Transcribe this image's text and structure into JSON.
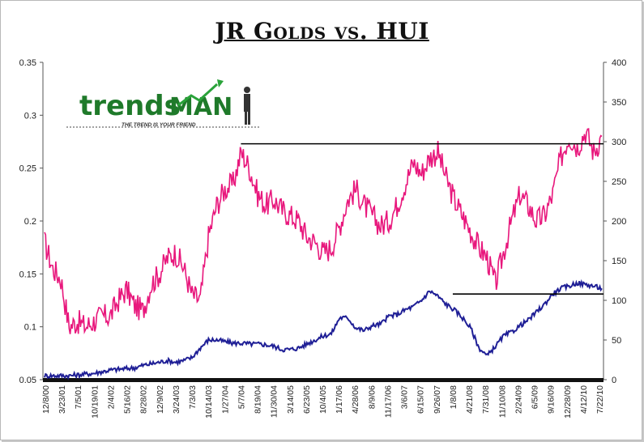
{
  "chart_data": {
    "type": "line",
    "title": "JR Golds vs. HUI",
    "xlabel": "",
    "ylabel_left": "",
    "ylabel_right": "",
    "y_left_range": [
      0.05,
      0.35
    ],
    "y_left_ticks": [
      "0.05",
      "0.1",
      "0.15",
      "0.2",
      "0.25",
      "0.3",
      "0.35"
    ],
    "y_right_range": [
      0,
      400
    ],
    "y_right_ticks": [
      "0",
      "50",
      "100",
      "150",
      "200",
      "250",
      "300",
      "350",
      "400"
    ],
    "x_tick_labels": [
      "12/8/00",
      "3/23/01",
      "7/5/01",
      "10/19/01",
      "2/4/02",
      "5/16/02",
      "8/28/02",
      "12/9/02",
      "3/24/03",
      "7/3/03",
      "10/14/03",
      "1/27/04",
      "5/7/04",
      "8/19/04",
      "11/30/04",
      "3/14/05",
      "6/23/05",
      "10/4/05",
      "1/17/06",
      "4/28/06",
      "8/9/06",
      "11/17/06",
      "3/6/07",
      "6/15/07",
      "9/26/07",
      "1/8/08",
      "4/21/08",
      "7/31/08",
      "11/10/08",
      "2/24/09",
      "6/5/09",
      "9/16/09",
      "12/28/09",
      "4/12/10",
      "7/22/10"
    ],
    "grid": false,
    "legend": "none",
    "series": [
      {
        "axis": "left",
        "color": "#e8177c",
        "values": [
          0.18,
          0.155,
          0.145,
          0.1,
          0.105,
          0.1,
          0.105,
          0.11,
          0.11,
          0.125,
          0.135,
          0.12,
          0.115,
          0.14,
          0.15,
          0.165,
          0.17,
          0.155,
          0.13,
          0.125,
          0.185,
          0.215,
          0.23,
          0.235,
          0.265,
          0.25,
          0.225,
          0.215,
          0.22,
          0.21,
          0.205,
          0.2,
          0.185,
          0.18,
          0.17,
          0.175,
          0.195,
          0.22,
          0.23,
          0.215,
          0.205,
          0.195,
          0.2,
          0.215,
          0.235,
          0.255,
          0.245,
          0.26,
          0.265,
          0.24,
          0.22,
          0.205,
          0.19,
          0.175,
          0.165,
          0.14,
          0.17,
          0.2,
          0.225,
          0.215,
          0.2,
          0.205,
          0.225,
          0.26,
          0.28,
          0.27,
          0.285,
          0.265,
          0.28
        ]
      },
      {
        "axis": "right",
        "color": "#1f1f96",
        "values": [
          5,
          5,
          5,
          5,
          6,
          7,
          8,
          10,
          12,
          13,
          14,
          15,
          18,
          20,
          22,
          24,
          22,
          24,
          28,
          40,
          50,
          50,
          48,
          46,
          46,
          45,
          45,
          44,
          42,
          38,
          38,
          40,
          45,
          50,
          55,
          58,
          78,
          78,
          65,
          62,
          68,
          70,
          80,
          82,
          88,
          92,
          100,
          112,
          105,
          95,
          88,
          78,
          65,
          40,
          30,
          42,
          55,
          60,
          68,
          75,
          85,
          95,
          108,
          115,
          118,
          122,
          120,
          118,
          115
        ]
      }
    ],
    "reference_lines": [
      {
        "axis": "left",
        "value": 0.273,
        "x_from_label": "5/7/04",
        "x_to_label": "7/22/10"
      },
      {
        "axis": "right",
        "value": 108,
        "x_from_label": "1/8/08",
        "x_to_label": "7/22/10"
      }
    ]
  },
  "logo": {
    "brand_part1": "trends",
    "brand_part2": "MAN",
    "tagline": "THE TREND IS YOUR FRIEND"
  }
}
